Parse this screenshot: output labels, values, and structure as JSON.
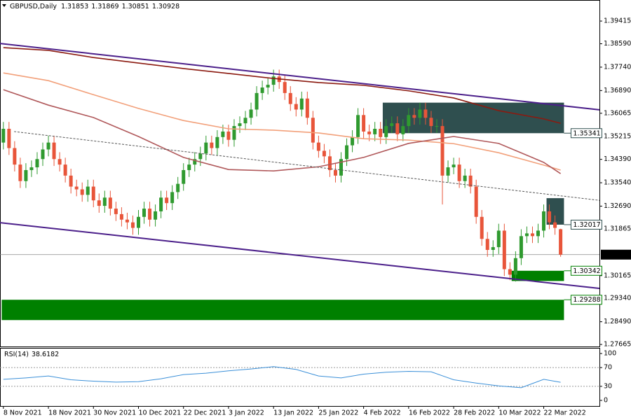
{
  "chart_data": {
    "type": "candlestick",
    "symbol": "GBPUSD,Daily",
    "candles": {
      "open": [
        1.35,
        1.355,
        1.348,
        1.342,
        1.336,
        1.34,
        1.341,
        1.344,
        1.3475,
        1.35,
        1.344,
        1.342,
        1.338,
        1.334,
        1.333,
        1.331,
        1.334,
        1.329,
        1.327,
        1.33,
        1.326,
        1.324,
        1.322,
        1.321,
        1.319,
        1.323,
        1.326,
        1.322,
        1.325,
        1.33,
        1.328,
        1.332,
        1.335,
        1.34,
        1.342,
        1.344,
        1.346,
        1.35,
        1.348,
        1.352,
        1.354,
        1.351,
        1.356,
        1.357,
        1.359,
        1.362,
        1.368,
        1.37,
        1.371,
        1.374,
        1.372,
        1.368,
        1.364,
        1.362,
        1.366,
        1.359,
        1.35,
        1.347,
        1.345,
        1.34,
        1.338,
        1.344,
        1.349,
        1.352,
        1.36,
        1.354,
        1.353,
        1.355,
        1.352,
        1.356,
        1.357,
        1.353,
        1.356,
        1.36,
        1.359,
        1.362,
        1.359,
        1.356,
        1.356,
        1.338,
        1.341,
        1.342,
        1.336,
        1.338,
        1.334,
        1.323,
        1.315,
        1.311,
        1.312,
        1.318,
        1.304,
        1.302,
        1.308,
        1.316,
        1.317,
        1.316,
        1.318,
        1.325,
        1.321,
        1.31853
      ],
      "high": [
        1.3575,
        1.3575,
        1.3505,
        1.3445,
        1.3425,
        1.3435,
        1.3465,
        1.35,
        1.3525,
        1.3525,
        1.3465,
        1.3445,
        1.3405,
        1.3365,
        1.3355,
        1.3365,
        1.3365,
        1.3315,
        1.3325,
        1.3325,
        1.3285,
        1.3265,
        1.3245,
        1.3235,
        1.3255,
        1.3285,
        1.3285,
        1.3275,
        1.3325,
        1.3325,
        1.3345,
        1.3375,
        1.3425,
        1.3445,
        1.3465,
        1.3485,
        1.3525,
        1.3525,
        1.3545,
        1.3565,
        1.3565,
        1.3585,
        1.3595,
        1.3615,
        1.3645,
        1.3705,
        1.3725,
        1.3735,
        1.3765,
        1.3765,
        1.3745,
        1.3705,
        1.3665,
        1.3685,
        1.3685,
        1.3615,
        1.3525,
        1.3495,
        1.3475,
        1.3425,
        1.3465,
        1.3515,
        1.3545,
        1.3625,
        1.3625,
        1.3565,
        1.3575,
        1.3575,
        1.3585,
        1.3595,
        1.3595,
        1.3585,
        1.3625,
        1.3625,
        1.3645,
        1.3645,
        1.3615,
        1.3585,
        1.3585,
        1.3435,
        1.3445,
        1.3445,
        1.3405,
        1.3405,
        1.3365,
        1.3255,
        1.3175,
        1.3145,
        1.3205,
        1.3205,
        1.3065,
        1.3105,
        1.3185,
        1.3195,
        1.3195,
        1.3205,
        1.3275,
        1.3275,
        1.3235,
        1.31869
      ],
      "low": [
        1.3475,
        1.3455,
        1.3395,
        1.3335,
        1.3335,
        1.3375,
        1.3385,
        1.3415,
        1.345,
        1.3415,
        1.3395,
        1.3355,
        1.3315,
        1.3305,
        1.3285,
        1.3285,
        1.3265,
        1.3245,
        1.3245,
        1.3235,
        1.3215,
        1.3195,
        1.3185,
        1.3165,
        1.3165,
        1.3205,
        1.3195,
        1.3195,
        1.3225,
        1.3255,
        1.3255,
        1.3295,
        1.3325,
        1.3375,
        1.3395,
        1.3415,
        1.3435,
        1.3455,
        1.3455,
        1.3495,
        1.3485,
        1.3485,
        1.3535,
        1.3545,
        1.3565,
        1.3595,
        1.3655,
        1.3675,
        1.3685,
        1.3695,
        1.3655,
        1.3615,
        1.3595,
        1.3595,
        1.3565,
        1.3475,
        1.3445,
        1.3425,
        1.3375,
        1.3355,
        1.3355,
        1.3415,
        1.3465,
        1.3495,
        1.3515,
        1.3505,
        1.3505,
        1.3495,
        1.3495,
        1.3535,
        1.3505,
        1.3505,
        1.3535,
        1.3565,
        1.3565,
        1.3565,
        1.3535,
        1.3535,
        1.3275,
        1.3355,
        1.3385,
        1.3335,
        1.3335,
        1.3315,
        1.3205,
        1.3125,
        1.3085,
        1.3085,
        1.3095,
        1.3015,
        1.3,
        1.2995,
        1.3055,
        1.3135,
        1.3135,
        1.3135,
        1.3155,
        1.3185,
        1.3165,
        1.30851
      ],
      "close": [
        1.355,
        1.348,
        1.342,
        1.336,
        1.34,
        1.341,
        1.344,
        1.3475,
        1.35,
        1.344,
        1.342,
        1.338,
        1.334,
        1.333,
        1.331,
        1.334,
        1.329,
        1.327,
        1.33,
        1.326,
        1.324,
        1.322,
        1.321,
        1.319,
        1.323,
        1.326,
        1.322,
        1.325,
        1.33,
        1.328,
        1.332,
        1.335,
        1.34,
        1.342,
        1.344,
        1.346,
        1.35,
        1.348,
        1.352,
        1.354,
        1.351,
        1.356,
        1.357,
        1.359,
        1.362,
        1.368,
        1.37,
        1.371,
        1.374,
        1.372,
        1.368,
        1.364,
        1.362,
        1.366,
        1.359,
        1.35,
        1.347,
        1.345,
        1.34,
        1.338,
        1.344,
        1.349,
        1.352,
        1.36,
        1.354,
        1.353,
        1.355,
        1.352,
        1.356,
        1.357,
        1.353,
        1.356,
        1.36,
        1.359,
        1.362,
        1.359,
        1.356,
        1.356,
        1.338,
        1.341,
        1.342,
        1.336,
        1.338,
        1.334,
        1.323,
        1.315,
        1.311,
        1.312,
        1.318,
        1.304,
        1.302,
        1.308,
        1.316,
        1.317,
        1.316,
        1.318,
        1.325,
        1.321,
        1.319,
        1.30928
      ]
    },
    "colors": {
      "up": "#2f9a2f",
      "down": "#e8553a",
      "frame": "#000000"
    },
    "xlim": [
      -0.6,
      105.9
    ],
    "xticks": [
      {
        "value": 0,
        "label": "8 Nov 2021"
      },
      {
        "value": 8,
        "label": "18 Nov 2021"
      },
      {
        "value": 16,
        "label": "30 Nov 2021"
      },
      {
        "value": 24,
        "label": "10 Dec 2021"
      },
      {
        "value": 32,
        "label": "22 Dec 2021"
      },
      {
        "value": 40,
        "label": "3 Jan 2022"
      },
      {
        "value": 48,
        "label": "13 Jan 2022"
      },
      {
        "value": 56,
        "label": "25 Jan 2022"
      },
      {
        "value": 64,
        "label": "4 Feb 2022"
      },
      {
        "value": 72,
        "label": "16 Feb 2022"
      },
      {
        "value": 80,
        "label": "28 Feb 2022"
      },
      {
        "value": 88,
        "label": "10 Mar 2022"
      },
      {
        "value": 96,
        "label": "22 Mar 2022"
      }
    ],
    "ylim": [
      1.2759,
      1.4018
    ],
    "yticks": [
      1.39415,
      {
        "value": 1.3859,
        "label": "1.38590"
      },
      {
        "value": 1.3774,
        "label": "1.37740"
      },
      {
        "value": 1.3689,
        "label": "1.36890"
      },
      1.36065,
      1.35215,
      {
        "value": 1.3439,
        "label": "1.34390"
      },
      {
        "value": 1.3354,
        "label": "1.33540"
      },
      {
        "value": 1.3269,
        "label": "1.32690"
      },
      1.31865,
      1.30165,
      {
        "value": 1.2934,
        "label": "1.29340"
      },
      {
        "value": 1.2849,
        "label": "1.28490"
      },
      1.27665
    ],
    "series": [
      {
        "color": "#8b1a10",
        "width": 1.6,
        "x": [
          0,
          8,
          16,
          24,
          32,
          40,
          48,
          56,
          64,
          72,
          80,
          88,
          96,
          99
        ],
        "values": [
          1.3845,
          1.3835,
          1.3809,
          1.3789,
          1.3769,
          1.3751,
          1.3733,
          1.3718,
          1.3708,
          1.3688,
          1.3662,
          1.3616,
          1.3586,
          1.357
        ]
      },
      {
        "color": "#f2a07a",
        "width": 1.6,
        "x": [
          0,
          8,
          16,
          24,
          32,
          40,
          48,
          56,
          64,
          72,
          80,
          88,
          96,
          99
        ],
        "values": [
          1.3753,
          1.3725,
          1.3674,
          1.3624,
          1.358,
          1.355,
          1.3545,
          1.3535,
          1.3514,
          1.3509,
          1.3496,
          1.3463,
          1.3418,
          1.34
        ]
      },
      {
        "color": "#b0585a",
        "width": 1.6,
        "x": [
          0,
          8,
          16,
          24,
          32,
          40,
          48,
          56,
          64,
          72,
          80,
          88,
          96,
          99
        ],
        "values": [
          1.3692,
          1.3636,
          1.3591,
          1.3522,
          1.3446,
          1.3402,
          1.3397,
          1.3412,
          1.3446,
          1.3497,
          1.3522,
          1.3497,
          1.3428,
          1.3387
        ]
      },
      {
        "color": "#4b1f8a",
        "width": 2,
        "x": [
          -0.6,
          105.9
        ],
        "values": [
          1.386,
          1.3619
        ]
      },
      {
        "color": "#4b1f8a",
        "width": 2,
        "x": [
          -0.6,
          105.9
        ],
        "values": [
          1.3209,
          1.297
        ]
      },
      {
        "color": "#555555",
        "width": 1,
        "dash": true,
        "x": [
          1.9,
          105.9
        ],
        "values": [
          1.354,
          1.329
        ]
      }
    ],
    "zones": [
      {
        "x": [
          67.4,
          99.6
        ],
        "y": [
          1.35341,
          1.3645
        ],
        "color": "#2f4f4f"
      },
      {
        "x": [
          96.5,
          99.6
        ],
        "y": [
          1.32017,
          1.3298
        ],
        "color": "#2f4f4f"
      },
      {
        "x": [
          90.3,
          99.6
        ],
        "y": [
          1.30342,
          1.2997
        ],
        "color": "#008000"
      },
      {
        "x": [
          -0.3,
          99.6
        ],
        "y": [
          1.29288,
          1.2855
        ],
        "color": "#008000"
      }
    ],
    "indicator": {
      "name": "RSI(14)",
      "color": "#3a8fd8",
      "x": [
        0,
        4,
        8,
        12,
        16,
        20,
        24,
        28,
        32,
        36,
        40,
        44,
        48,
        52,
        56,
        60,
        64,
        68,
        72,
        76,
        80,
        84,
        88,
        92,
        96,
        99
      ],
      "values": [
        45,
        48,
        52,
        44,
        41,
        39,
        40,
        46,
        55,
        58,
        63,
        67,
        72,
        66,
        52,
        48,
        56,
        60,
        62,
        61,
        44,
        37,
        31,
        27,
        45,
        38.6182
      ],
      "ylim": [
        -12,
        112
      ],
      "yticks": [
        0,
        30,
        70,
        100
      ]
    }
  }
}
